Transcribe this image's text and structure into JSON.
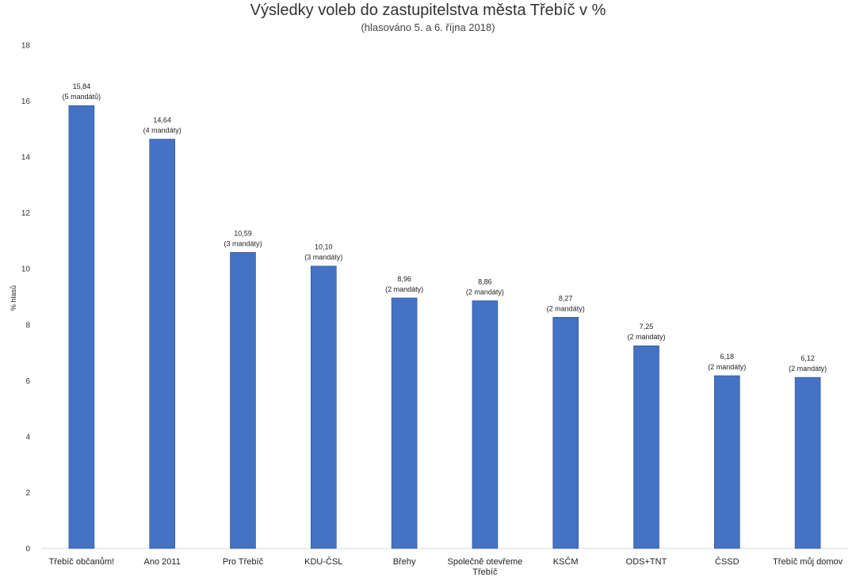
{
  "chart_data": {
    "type": "bar",
    "title": "Výsledky voleb do zastupitelstva města Třebíč v %",
    "subtitle": "(hlasováno 5. a 6. října 2018)",
    "ylabel": "% hlasů",
    "xlabel": "",
    "ylim": [
      0,
      18
    ],
    "yticks": [
      0,
      2,
      4,
      6,
      8,
      10,
      12,
      14,
      16,
      18
    ],
    "grid": false,
    "bar_color": "#4472C4",
    "categories": [
      "Třebíč občanům!",
      "Ano 2011",
      "Pro Třebíč",
      "KDU-ČSL",
      "Břehy",
      "Společně otevřeme Třebíč",
      "KSČM",
      "ODS+TNT",
      "ČSSD",
      "Třebíč můj domov"
    ],
    "values": [
      15.84,
      14.64,
      10.59,
      10.1,
      8.96,
      8.86,
      8.27,
      7.25,
      6.18,
      6.12
    ],
    "data_labels": [
      "15,84",
      "14,64",
      "10,59",
      "10,10",
      "8,96",
      "8,86",
      "8,27",
      "7,25",
      "6,18",
      "6,12"
    ],
    "annotations": [
      "(5 mandátů)",
      "(4 mandáty)",
      "(3 mandáty)",
      "(3 mandáty)",
      "(2 mandáty)",
      "(2 mandáty)",
      "(2 mandáty)",
      "(2 mandáty)",
      "(2 mandáty)",
      "(2 mandáty)"
    ]
  }
}
